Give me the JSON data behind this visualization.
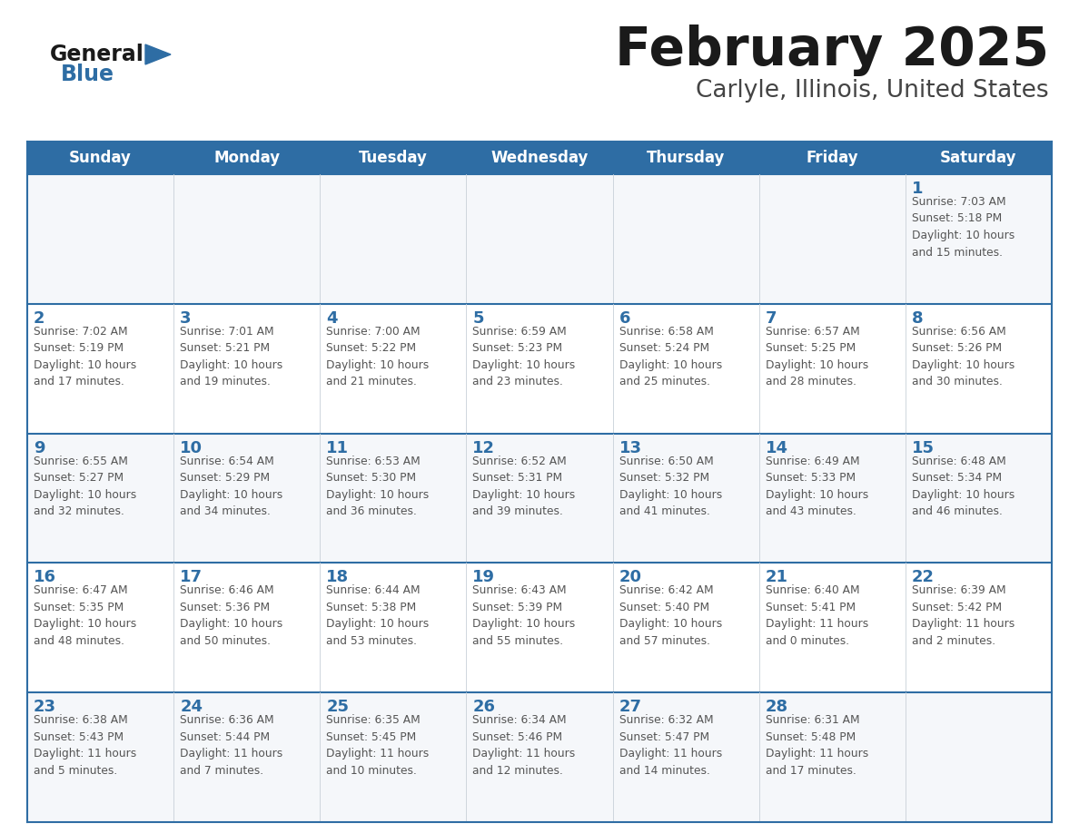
{
  "title": "February 2025",
  "subtitle": "Carlyle, Illinois, United States",
  "days_of_week": [
    "Sunday",
    "Monday",
    "Tuesday",
    "Wednesday",
    "Thursday",
    "Friday",
    "Saturday"
  ],
  "header_bg": "#2e6da4",
  "header_text_color": "#ffffff",
  "cell_border_color": "#2e6da4",
  "row_border_color": "#2e6da4",
  "day_number_color": "#2e6da4",
  "cell_text_color": "#555555",
  "background_color": "#ffffff",
  "title_color": "#1a1a1a",
  "subtitle_color": "#444444",
  "logo_general_color": "#1a1a1a",
  "logo_blue_color": "#2e6da4",
  "cell_bg_even": "#f5f7fa",
  "cell_bg_odd": "#ffffff",
  "calendar_data": [
    [
      {
        "day": null,
        "info": null
      },
      {
        "day": null,
        "info": null
      },
      {
        "day": null,
        "info": null
      },
      {
        "day": null,
        "info": null
      },
      {
        "day": null,
        "info": null
      },
      {
        "day": null,
        "info": null
      },
      {
        "day": 1,
        "info": "Sunrise: 7:03 AM\nSunset: 5:18 PM\nDaylight: 10 hours\nand 15 minutes."
      }
    ],
    [
      {
        "day": 2,
        "info": "Sunrise: 7:02 AM\nSunset: 5:19 PM\nDaylight: 10 hours\nand 17 minutes."
      },
      {
        "day": 3,
        "info": "Sunrise: 7:01 AM\nSunset: 5:21 PM\nDaylight: 10 hours\nand 19 minutes."
      },
      {
        "day": 4,
        "info": "Sunrise: 7:00 AM\nSunset: 5:22 PM\nDaylight: 10 hours\nand 21 minutes."
      },
      {
        "day": 5,
        "info": "Sunrise: 6:59 AM\nSunset: 5:23 PM\nDaylight: 10 hours\nand 23 minutes."
      },
      {
        "day": 6,
        "info": "Sunrise: 6:58 AM\nSunset: 5:24 PM\nDaylight: 10 hours\nand 25 minutes."
      },
      {
        "day": 7,
        "info": "Sunrise: 6:57 AM\nSunset: 5:25 PM\nDaylight: 10 hours\nand 28 minutes."
      },
      {
        "day": 8,
        "info": "Sunrise: 6:56 AM\nSunset: 5:26 PM\nDaylight: 10 hours\nand 30 minutes."
      }
    ],
    [
      {
        "day": 9,
        "info": "Sunrise: 6:55 AM\nSunset: 5:27 PM\nDaylight: 10 hours\nand 32 minutes."
      },
      {
        "day": 10,
        "info": "Sunrise: 6:54 AM\nSunset: 5:29 PM\nDaylight: 10 hours\nand 34 minutes."
      },
      {
        "day": 11,
        "info": "Sunrise: 6:53 AM\nSunset: 5:30 PM\nDaylight: 10 hours\nand 36 minutes."
      },
      {
        "day": 12,
        "info": "Sunrise: 6:52 AM\nSunset: 5:31 PM\nDaylight: 10 hours\nand 39 minutes."
      },
      {
        "day": 13,
        "info": "Sunrise: 6:50 AM\nSunset: 5:32 PM\nDaylight: 10 hours\nand 41 minutes."
      },
      {
        "day": 14,
        "info": "Sunrise: 6:49 AM\nSunset: 5:33 PM\nDaylight: 10 hours\nand 43 minutes."
      },
      {
        "day": 15,
        "info": "Sunrise: 6:48 AM\nSunset: 5:34 PM\nDaylight: 10 hours\nand 46 minutes."
      }
    ],
    [
      {
        "day": 16,
        "info": "Sunrise: 6:47 AM\nSunset: 5:35 PM\nDaylight: 10 hours\nand 48 minutes."
      },
      {
        "day": 17,
        "info": "Sunrise: 6:46 AM\nSunset: 5:36 PM\nDaylight: 10 hours\nand 50 minutes."
      },
      {
        "day": 18,
        "info": "Sunrise: 6:44 AM\nSunset: 5:38 PM\nDaylight: 10 hours\nand 53 minutes."
      },
      {
        "day": 19,
        "info": "Sunrise: 6:43 AM\nSunset: 5:39 PM\nDaylight: 10 hours\nand 55 minutes."
      },
      {
        "day": 20,
        "info": "Sunrise: 6:42 AM\nSunset: 5:40 PM\nDaylight: 10 hours\nand 57 minutes."
      },
      {
        "day": 21,
        "info": "Sunrise: 6:40 AM\nSunset: 5:41 PM\nDaylight: 11 hours\nand 0 minutes."
      },
      {
        "day": 22,
        "info": "Sunrise: 6:39 AM\nSunset: 5:42 PM\nDaylight: 11 hours\nand 2 minutes."
      }
    ],
    [
      {
        "day": 23,
        "info": "Sunrise: 6:38 AM\nSunset: 5:43 PM\nDaylight: 11 hours\nand 5 minutes."
      },
      {
        "day": 24,
        "info": "Sunrise: 6:36 AM\nSunset: 5:44 PM\nDaylight: 11 hours\nand 7 minutes."
      },
      {
        "day": 25,
        "info": "Sunrise: 6:35 AM\nSunset: 5:45 PM\nDaylight: 11 hours\nand 10 minutes."
      },
      {
        "day": 26,
        "info": "Sunrise: 6:34 AM\nSunset: 5:46 PM\nDaylight: 11 hours\nand 12 minutes."
      },
      {
        "day": 27,
        "info": "Sunrise: 6:32 AM\nSunset: 5:47 PM\nDaylight: 11 hours\nand 14 minutes."
      },
      {
        "day": 28,
        "info": "Sunrise: 6:31 AM\nSunset: 5:48 PM\nDaylight: 11 hours\nand 17 minutes."
      },
      {
        "day": null,
        "info": null
      }
    ]
  ]
}
